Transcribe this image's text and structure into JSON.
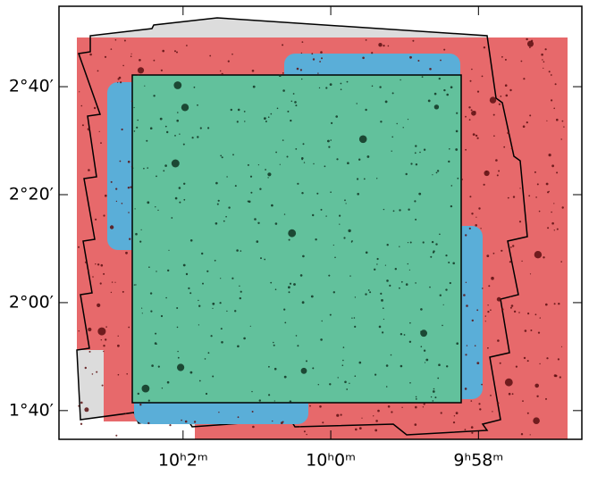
{
  "chart_data": {
    "type": "map",
    "xlim": [
      150.92,
      149.15
    ],
    "ylim": [
      1.578,
      2.915
    ],
    "xticks": [
      {
        "value": 150.5,
        "label": "10ʰ2ᵐ"
      },
      {
        "value": 150.0,
        "label": "10ʰ0ᵐ"
      },
      {
        "value": 149.5,
        "label": "9ʰ58ᵐ"
      }
    ],
    "yticks": [
      {
        "value": 2.6667,
        "label": "2°40′"
      },
      {
        "value": 2.3333,
        "label": "2°20′"
      },
      {
        "value": 2.0,
        "label": "2°00′"
      },
      {
        "value": 1.6667,
        "label": "1°40′"
      }
    ]
  }
}
